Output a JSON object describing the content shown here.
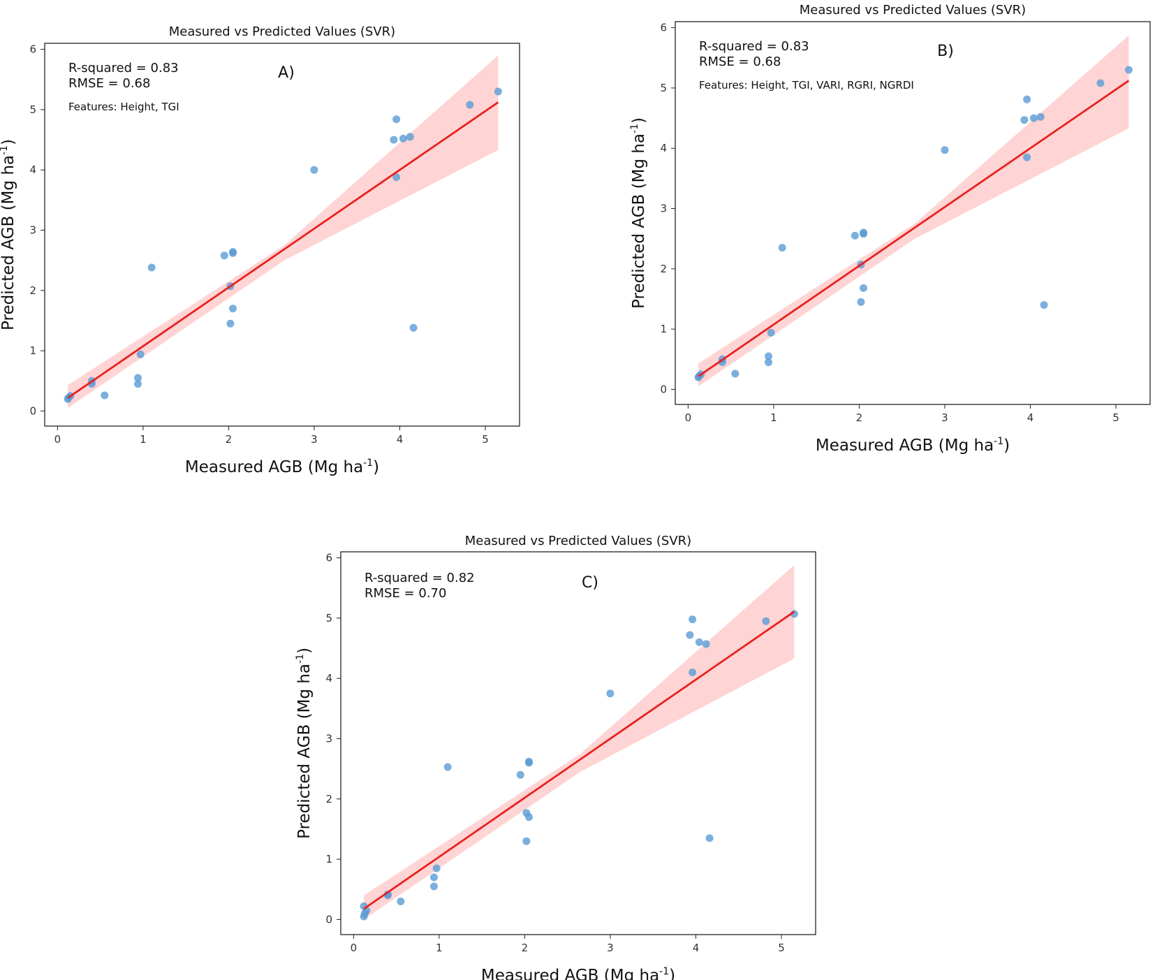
{
  "figure": {
    "background": "#ffffff"
  },
  "chart_data": [
    {
      "type": "scatter",
      "panel_label": "A)",
      "title": "Measured vs Predicted Values (SVR)",
      "xlabel": "Measured AGB (Mg ha",
      "ylabel": "Predicted AGB (Mg ha",
      "unit_superscript": "-1",
      "unit_close": ")",
      "xlim": [
        -0.15,
        5.4
      ],
      "ylim": [
        -0.25,
        6.1
      ],
      "xticks": [
        0,
        1,
        2,
        3,
        4,
        5
      ],
      "yticks": [
        0,
        1,
        2,
        3,
        4,
        5,
        6
      ],
      "grid": false,
      "annotations": [
        "R-squared = 0.83",
        "RMSE = 0.68"
      ],
      "features_note": "Features: Height, TGI",
      "x": [
        0.12,
        0.13,
        0.15,
        0.4,
        0.4,
        0.55,
        0.94,
        0.94,
        0.97,
        1.1,
        1.95,
        2.02,
        2.02,
        2.05,
        2.05,
        2.05,
        3.0,
        3.93,
        3.96,
        3.96,
        4.04,
        4.12,
        4.16,
        4.82,
        5.15
      ],
      "y": [
        0.2,
        0.22,
        0.25,
        0.5,
        0.45,
        0.26,
        0.55,
        0.45,
        0.94,
        2.38,
        2.58,
        2.07,
        1.45,
        1.7,
        2.62,
        2.64,
        4.0,
        4.5,
        4.84,
        3.88,
        4.52,
        4.55,
        1.38,
        5.08,
        5.3
      ],
      "trend": {
        "slope": 0.975,
        "intercept": 0.1,
        "x_range": [
          0.12,
          5.15
        ]
      },
      "confidence_band": {
        "x": [
          0.12,
          2.65,
          5.15
        ],
        "lower": [
          0.05,
          2.5,
          4.33
        ],
        "upper": [
          0.43,
          2.75,
          5.9
        ]
      },
      "point_color": "#5a9bd5",
      "line_color": "#e8211f",
      "band_color": "#ffcccc"
    },
    {
      "type": "scatter",
      "panel_label": "B)",
      "title": "Measured vs Predicted Values (SVR)",
      "xlabel": "Measured AGB (Mg ha",
      "ylabel": "Predicted AGB (Mg ha",
      "unit_superscript": "-1",
      "unit_close": ")",
      "xlim": [
        -0.15,
        5.4
      ],
      "ylim": [
        -0.25,
        6.1
      ],
      "xticks": [
        0,
        1,
        2,
        3,
        4,
        5
      ],
      "yticks": [
        0,
        1,
        2,
        3,
        4,
        5,
        6
      ],
      "grid": false,
      "annotations": [
        "R-squared = 0.83",
        "RMSE = 0.68"
      ],
      "features_note": "Features: Height, TGI, VARI, RGRI, NGRDI",
      "x": [
        0.12,
        0.13,
        0.15,
        0.4,
        0.4,
        0.55,
        0.94,
        0.94,
        0.97,
        1.1,
        1.95,
        2.02,
        2.02,
        2.05,
        2.05,
        2.05,
        3.0,
        3.93,
        3.96,
        3.96,
        4.04,
        4.12,
        4.16,
        4.82,
        5.15
      ],
      "y": [
        0.2,
        0.22,
        0.25,
        0.5,
        0.45,
        0.26,
        0.55,
        0.45,
        0.94,
        2.35,
        2.55,
        2.07,
        1.45,
        1.68,
        2.58,
        2.6,
        3.97,
        4.47,
        4.81,
        3.85,
        4.5,
        4.52,
        1.4,
        5.08,
        5.3
      ],
      "trend": {
        "slope": 0.975,
        "intercept": 0.1,
        "x_range": [
          0.12,
          5.15
        ]
      },
      "confidence_band": {
        "x": [
          0.12,
          2.65,
          5.15
        ],
        "lower": [
          0.05,
          2.5,
          4.33
        ],
        "upper": [
          0.43,
          2.75,
          5.87
        ]
      },
      "point_color": "#5a9bd5",
      "line_color": "#e8211f",
      "band_color": "#ffcccc"
    },
    {
      "type": "scatter",
      "panel_label": "C)",
      "title": "Measured vs Predicted Values (SVR)",
      "xlabel": "Measured AGB (Mg ha",
      "ylabel": "Predicted AGB (Mg ha",
      "unit_superscript": "-1",
      "unit_close": ")",
      "xlim": [
        -0.15,
        5.4
      ],
      "ylim": [
        -0.25,
        6.1
      ],
      "xticks": [
        0,
        1,
        2,
        3,
        4,
        5
      ],
      "yticks": [
        0,
        1,
        2,
        3,
        4,
        5,
        6
      ],
      "grid": false,
      "annotations": [
        "R-squared = 0.82",
        "RMSE = 0.70"
      ],
      "features_note": "",
      "x": [
        0.12,
        0.12,
        0.13,
        0.15,
        0.4,
        0.4,
        0.55,
        0.94,
        0.94,
        0.97,
        1.1,
        1.95,
        2.02,
        2.02,
        2.05,
        2.05,
        2.05,
        3.0,
        3.93,
        3.96,
        3.96,
        4.04,
        4.12,
        4.16,
        4.82,
        5.15
      ],
      "y": [
        0.22,
        0.05,
        0.1,
        0.15,
        0.4,
        0.42,
        0.3,
        0.55,
        0.7,
        0.85,
        2.53,
        2.4,
        1.77,
        1.3,
        1.7,
        2.6,
        2.62,
        3.75,
        4.72,
        4.98,
        4.1,
        4.6,
        4.57,
        1.35,
        4.95,
        5.07
      ],
      "trend": {
        "slope": 0.98,
        "intercept": 0.06,
        "x_range": [
          0.12,
          5.15
        ]
      },
      "confidence_band": {
        "x": [
          0.12,
          2.65,
          5.15
        ],
        "lower": [
          0.0,
          2.45,
          4.33
        ],
        "upper": [
          0.4,
          2.75,
          5.88
        ]
      },
      "point_color": "#5a9bd5",
      "line_color": "#e8211f",
      "band_color": "#ffcccc"
    }
  ]
}
